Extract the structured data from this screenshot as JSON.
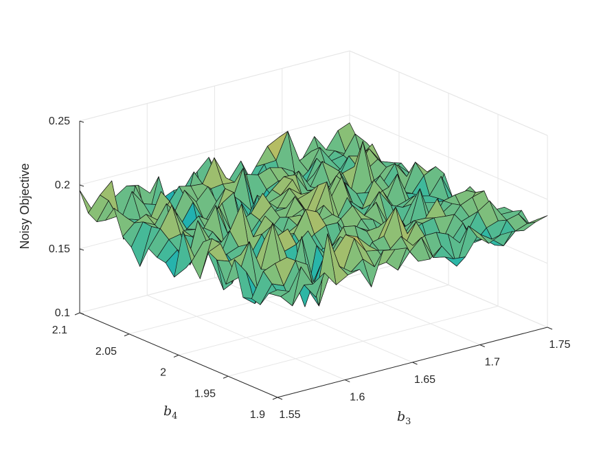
{
  "chart_data": {
    "type": "surface3d",
    "zlabel": "Noisy Objective",
    "xlabel_symbol": "b",
    "xlabel_subscript": "3",
    "ylabel_symbol": "b",
    "ylabel_subscript": "4",
    "xlim": [
      1.55,
      1.75
    ],
    "ylim": [
      1.9,
      2.1
    ],
    "zlim": [
      0.1,
      0.25
    ],
    "x_ticks": [
      "1.55",
      "1.6",
      "1.65",
      "1.7",
      "1.75"
    ],
    "y_ticks": [
      "1.9",
      "1.95",
      "2",
      "2.05",
      "2.1"
    ],
    "z_ticks": [
      "0.1",
      "0.15",
      "0.2",
      "0.25"
    ],
    "grid": true,
    "colormap": "parula",
    "colormap_stops": [
      "#352a87",
      "#0f5cdd",
      "#1481d6",
      "#06a4ca",
      "#2eb7a4",
      "#87bf77",
      "#d1bb59",
      "#fec832",
      "#f9fb0e"
    ],
    "surface": {
      "x_range": [
        1.55,
        1.75
      ],
      "y_range": [
        1.9,
        2.1
      ],
      "grid_points": 24,
      "mean_z": 0.18,
      "noise_amplitude": 0.035
    }
  }
}
